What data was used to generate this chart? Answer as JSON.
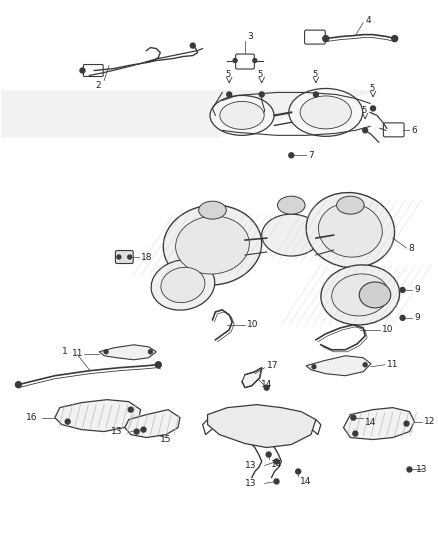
{
  "bg_color": "#ffffff",
  "line_color": "#3a3a3a",
  "lw": 0.8,
  "fig_width": 4.38,
  "fig_height": 5.33,
  "dpi": 100
}
